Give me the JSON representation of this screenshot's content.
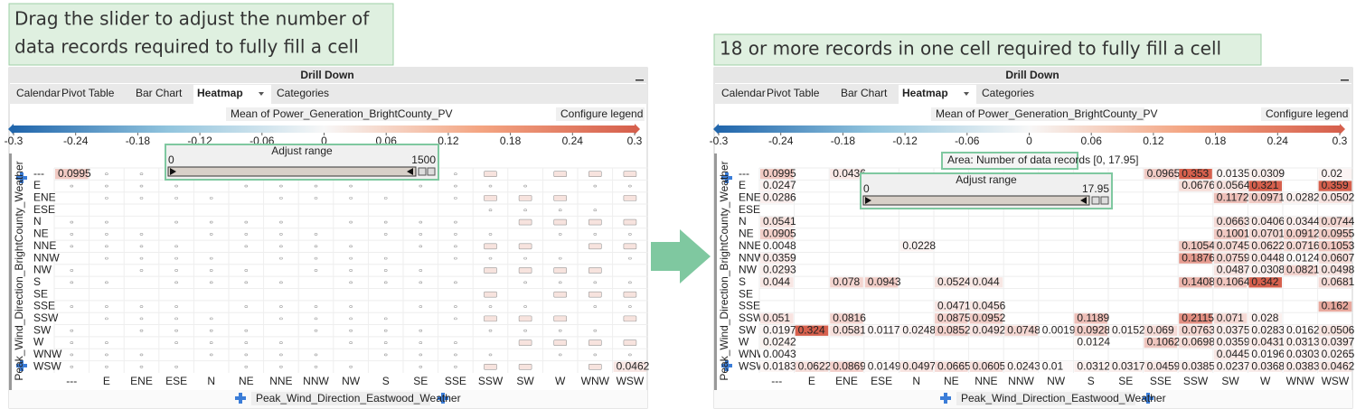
{
  "categories": [
    "---",
    "E",
    "ENE",
    "ESE",
    "N",
    "NE",
    "NNE",
    "NNW",
    "NW",
    "S",
    "SE",
    "SSE",
    "SSW",
    "SW",
    "W",
    "WNW",
    "WSW"
  ],
  "panels": [
    {
      "callout": [
        "Drag the slider to adjust the number of",
        "data records required to fully fill a cell"
      ],
      "title": "Drill Down",
      "tabs": [
        "Calendar",
        "Pivot Table",
        "Bar Chart",
        "Heatmap",
        "Categories"
      ],
      "legend": {
        "label": "Mean of Power_Generation_BrightCounty_PV",
        "button": "Configure legend",
        "range": [
          -0.3,
          0.3
        ],
        "ticks": [
          -0.3,
          -0.24,
          -0.18,
          -0.12,
          -0.06,
          0,
          0.06,
          0.12,
          0.18,
          0.24,
          0.3
        ]
      },
      "slider": {
        "title": "Adjust range",
        "min": 0,
        "max": 1500
      },
      "heatmap": {
        "y_label": "Peak_Wind_Direction_BrightCounty_Weather",
        "x_label": "Peak_Wind_Direction_Eastwood_Weather",
        "cells": [
          [
            0.0995,
            null,
            null,
            null,
            null,
            null,
            null,
            null,
            null,
            null,
            null,
            null,
            null,
            null,
            null,
            null,
            null
          ],
          [
            null,
            null,
            null,
            null,
            null,
            null,
            null,
            null,
            null,
            null,
            null,
            null,
            null,
            null,
            null,
            null,
            null
          ],
          [
            null,
            null,
            null,
            null,
            null,
            null,
            null,
            null,
            null,
            null,
            null,
            null,
            null,
            null,
            null,
            null,
            null
          ],
          [
            null,
            null,
            null,
            null,
            null,
            null,
            null,
            null,
            null,
            null,
            null,
            null,
            null,
            null,
            null,
            null,
            null
          ],
          [
            null,
            null,
            null,
            null,
            null,
            null,
            null,
            null,
            null,
            null,
            null,
            null,
            null,
            null,
            null,
            null,
            null
          ],
          [
            null,
            null,
            null,
            null,
            null,
            null,
            null,
            null,
            null,
            null,
            null,
            null,
            null,
            null,
            null,
            null,
            null
          ],
          [
            null,
            null,
            null,
            null,
            null,
            null,
            null,
            null,
            null,
            null,
            null,
            null,
            null,
            null,
            null,
            null,
            null
          ],
          [
            null,
            null,
            null,
            null,
            null,
            null,
            null,
            null,
            null,
            null,
            null,
            null,
            null,
            null,
            null,
            null,
            null
          ],
          [
            null,
            null,
            null,
            null,
            null,
            null,
            null,
            null,
            null,
            null,
            null,
            null,
            null,
            null,
            null,
            null,
            null
          ],
          [
            null,
            null,
            null,
            null,
            null,
            null,
            null,
            null,
            null,
            null,
            null,
            null,
            null,
            null,
            null,
            null,
            null
          ],
          [
            null,
            null,
            null,
            null,
            null,
            null,
            null,
            null,
            null,
            null,
            null,
            null,
            null,
            null,
            null,
            null,
            null
          ],
          [
            null,
            null,
            null,
            null,
            null,
            null,
            null,
            null,
            null,
            null,
            null,
            null,
            null,
            null,
            null,
            null,
            null
          ],
          [
            null,
            null,
            null,
            null,
            null,
            null,
            null,
            null,
            null,
            null,
            null,
            null,
            null,
            null,
            null,
            null,
            null
          ],
          [
            null,
            null,
            null,
            null,
            null,
            null,
            null,
            null,
            null,
            null,
            null,
            null,
            null,
            null,
            null,
            null,
            null
          ],
          [
            null,
            null,
            null,
            null,
            null,
            null,
            null,
            null,
            null,
            null,
            null,
            null,
            null,
            null,
            null,
            null,
            null
          ],
          [
            null,
            null,
            null,
            null,
            null,
            null,
            null,
            null,
            null,
            null,
            null,
            null,
            null,
            null,
            null,
            null,
            null
          ],
          [
            null,
            null,
            null,
            null,
            null,
            null,
            null,
            null,
            null,
            null,
            null,
            null,
            null,
            null,
            null,
            null,
            0.0462
          ]
        ]
      }
    },
    {
      "callout": [
        "18 or more records in one cell required to fully fill a cell"
      ],
      "title": "Drill Down",
      "tabs": [
        "Calendar",
        "Pivot Table",
        "Bar Chart",
        "Heatmap",
        "Categories"
      ],
      "legend": {
        "label": "Mean of Power_Generation_BrightCounty_PV",
        "button": "Configure legend",
        "range": [
          -0.3,
          0.3
        ],
        "ticks": [
          -0.3,
          -0.24,
          -0.18,
          -0.12,
          -0.06,
          0,
          0.06,
          0.12,
          0.18,
          0.24,
          0.3
        ]
      },
      "slider": {
        "title": "Adjust range",
        "min": 0,
        "max": 17.95
      },
      "area": "Area:  Number of data records [0, 17.95]",
      "heatmap": {
        "y_label": "Peak_Wind_Direction_BrightCounty_Weather",
        "x_label": "Peak_Wind_Direction_Eastwood_Weather",
        "cells": [
          [
            0.0995,
            null,
            0.0436,
            null,
            null,
            null,
            null,
            null,
            null,
            null,
            null,
            0.0965,
            0.353,
            0.0135,
            0.0309,
            null,
            0.02
          ],
          [
            0.0247,
            null,
            null,
            null,
            null,
            null,
            null,
            null,
            null,
            null,
            null,
            null,
            0.0676,
            0.0564,
            0.321,
            null,
            0.359
          ],
          [
            0.0286,
            null,
            null,
            null,
            null,
            null,
            null,
            null,
            null,
            null,
            null,
            null,
            null,
            0.1172,
            0.0971,
            0.0282,
            0.0502
          ],
          [
            null,
            null,
            null,
            null,
            null,
            null,
            null,
            null,
            null,
            null,
            null,
            null,
            null,
            null,
            null,
            null,
            null
          ],
          [
            0.0541,
            null,
            null,
            null,
            null,
            null,
            null,
            null,
            null,
            null,
            null,
            null,
            null,
            0.0663,
            0.0406,
            0.0344,
            0.0744
          ],
          [
            0.0905,
            null,
            null,
            null,
            null,
            null,
            null,
            null,
            null,
            null,
            null,
            null,
            null,
            0.1001,
            0.0701,
            0.0912,
            0.0955
          ],
          [
            0.0048,
            null,
            null,
            null,
            0.0228,
            null,
            null,
            null,
            null,
            null,
            null,
            null,
            0.1054,
            0.0745,
            0.0622,
            0.0716,
            0.1053
          ],
          [
            0.0359,
            null,
            null,
            null,
            null,
            null,
            null,
            null,
            null,
            null,
            null,
            null,
            0.1876,
            0.0759,
            0.0448,
            0.0124,
            0.0607
          ],
          [
            0.0293,
            null,
            null,
            null,
            null,
            null,
            null,
            null,
            null,
            null,
            null,
            null,
            null,
            0.0487,
            0.0308,
            0.0821,
            0.0498
          ],
          [
            0.044,
            null,
            0.078,
            0.0943,
            null,
            0.0524,
            0.044,
            null,
            null,
            null,
            null,
            null,
            0.1408,
            0.1064,
            0.342,
            null,
            0.0681
          ],
          [
            null,
            null,
            null,
            null,
            null,
            null,
            null,
            null,
            null,
            null,
            null,
            null,
            null,
            null,
            null,
            null,
            null
          ],
          [
            null,
            null,
            null,
            null,
            null,
            0.0471,
            0.0456,
            null,
            null,
            null,
            null,
            null,
            null,
            null,
            null,
            null,
            0.162
          ],
          [
            0.051,
            null,
            0.0816,
            null,
            null,
            0.0875,
            0.0952,
            null,
            null,
            0.1189,
            null,
            null,
            0.2115,
            0.071,
            0.028,
            null,
            null
          ],
          [
            0.0197,
            0.324,
            0.0581,
            0.0117,
            0.0248,
            0.0852,
            0.0492,
            0.0748,
            0.0019,
            0.0928,
            0.0152,
            0.069,
            0.0763,
            0.0375,
            0.0283,
            0.0162,
            0.0506
          ],
          [
            0.0242,
            null,
            null,
            null,
            null,
            null,
            null,
            null,
            null,
            0.0124,
            null,
            0.1062,
            0.0698,
            0.0359,
            0.0431,
            0.0313,
            0.0397
          ],
          [
            0.0043,
            null,
            null,
            null,
            null,
            null,
            null,
            null,
            null,
            null,
            null,
            null,
            null,
            0.0445,
            0.0196,
            0.0303,
            0.0265
          ],
          [
            0.0183,
            0.0622,
            0.0869,
            0.0149,
            0.0497,
            0.0665,
            0.0605,
            0.0243,
            0.01,
            0.0312,
            0.0317,
            0.0459,
            0.0385,
            0.0237,
            0.0368,
            0.0383,
            0.0462
          ]
        ]
      }
    }
  ]
}
